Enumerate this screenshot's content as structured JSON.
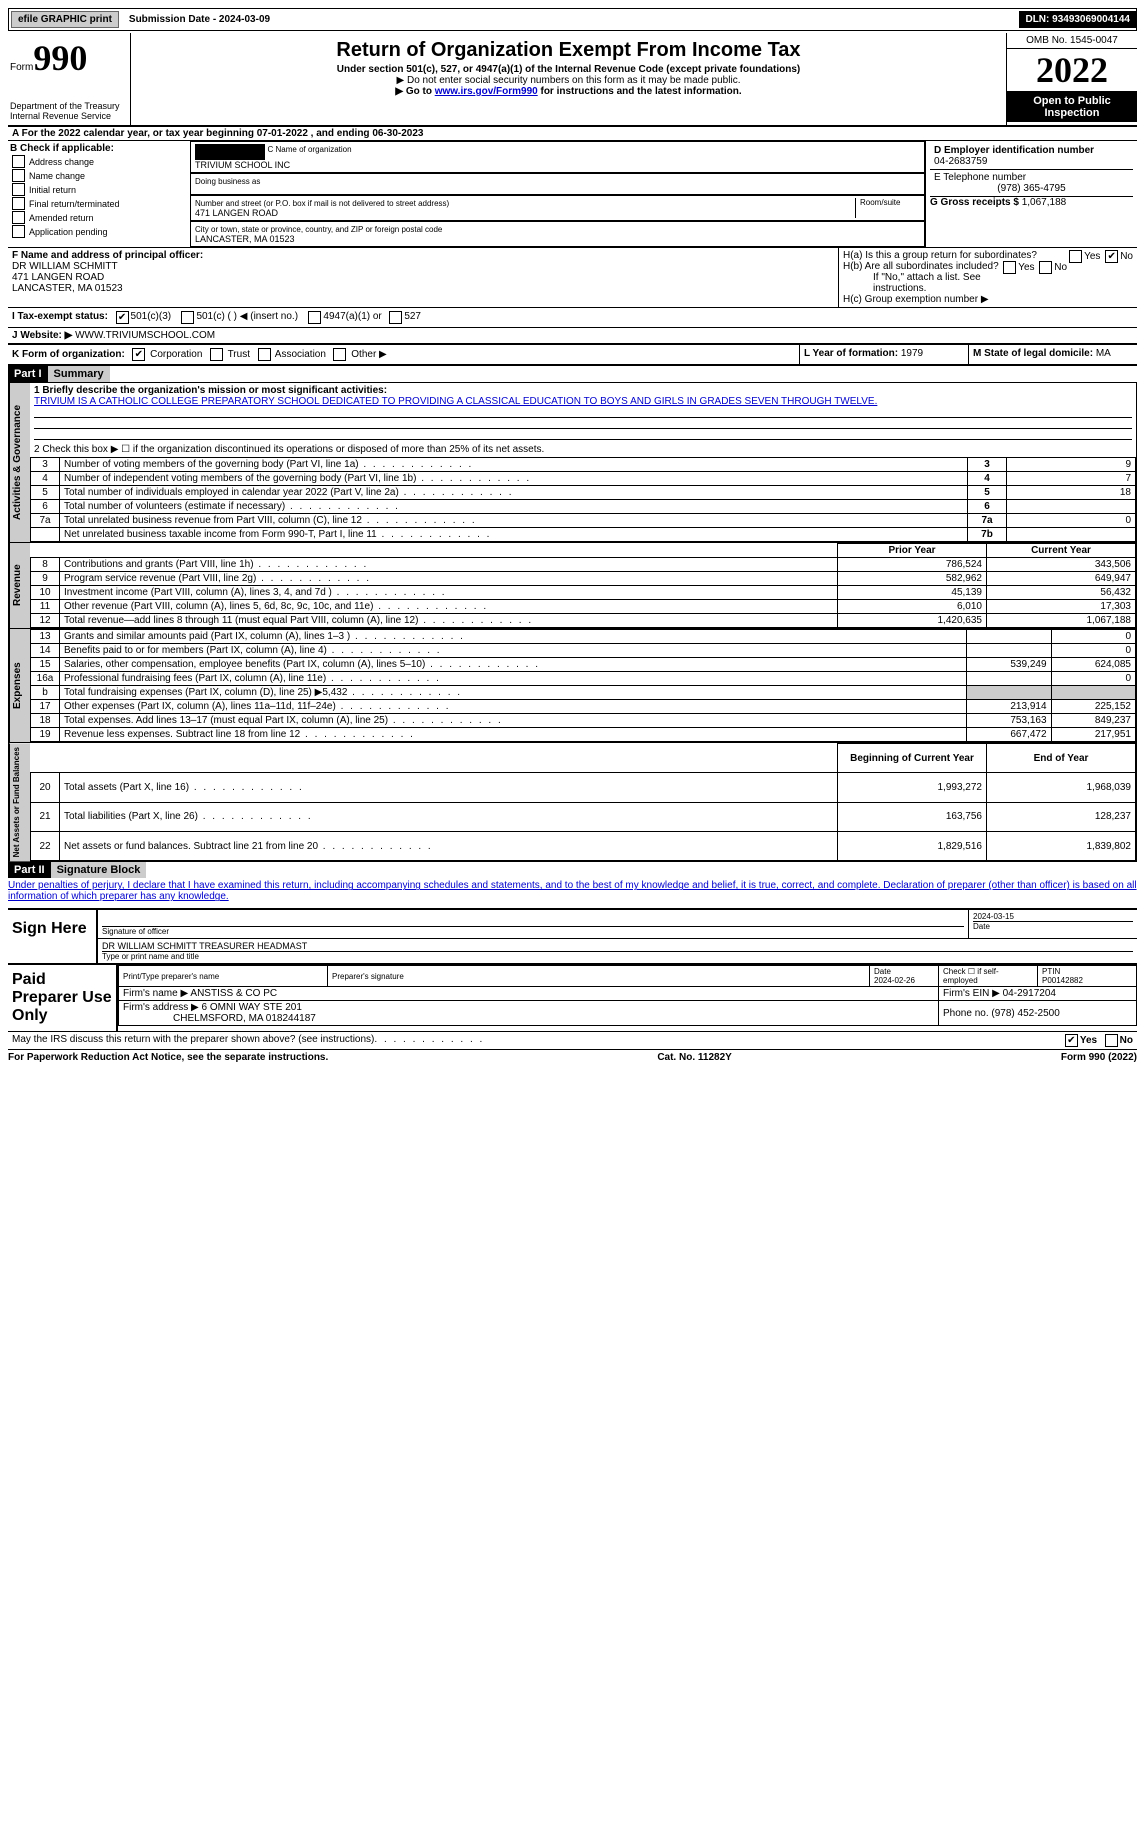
{
  "topbar": {
    "efile": "efile GRAPHIC print",
    "submission": "Submission Date - 2024-03-09",
    "dln": "DLN: 93493069004144"
  },
  "hdr": {
    "form_prefix": "Form",
    "form_num": "990",
    "title": "Return of Organization Exempt From Income Tax",
    "sub1": "Under section 501(c), 527, or 4947(a)(1) of the Internal Revenue Code (except private foundations)",
    "sub2": "▶ Do not enter social security numbers on this form as it may be made public.",
    "sub3_pre": "▶ Go to ",
    "sub3_link": "www.irs.gov/Form990",
    "sub3_post": " for instructions and the latest information.",
    "dept": "Department of the Treasury",
    "irs": "Internal Revenue Service",
    "omb": "OMB No. 1545-0047",
    "year": "2022",
    "inspect": "Open to Public Inspection"
  },
  "A": {
    "text": "A For the 2022 calendar year, or tax year beginning 07-01-2022   , and ending 06-30-2023"
  },
  "B": {
    "label": "B Check if applicable:",
    "opts": [
      "Address change",
      "Name change",
      "Initial return",
      "Final return/terminated",
      "Amended return",
      "Application pending"
    ]
  },
  "C": {
    "name_label": "C Name of organization",
    "name": "TRIVIUM SCHOOL INC",
    "dba_label": "Doing business as",
    "dba": "",
    "addr_label": "Number and street (or P.O. box if mail is not delivered to street address)",
    "room": "Room/suite",
    "addr": "471 LANGEN ROAD",
    "city_label": "City or town, state or province, country, and ZIP or foreign postal code",
    "city": "LANCASTER, MA  01523"
  },
  "D": {
    "label": "D Employer identification number",
    "val": "04-2683759"
  },
  "E": {
    "label": "E Telephone number",
    "val": "(978) 365-4795"
  },
  "G": {
    "label": "G Gross receipts $",
    "val": "1,067,188"
  },
  "F": {
    "label": "F  Name and address of principal officer:",
    "name": "DR WILLIAM SCHMITT",
    "addr": "471 LANGEN ROAD",
    "city": "LANCASTER, MA  01523"
  },
  "H": {
    "a": "H(a)  Is this a group return for subordinates?",
    "a_yes": "Yes",
    "a_no": "No",
    "b": "H(b)  Are all subordinates included?",
    "b_yes": "Yes",
    "b_no": "No",
    "b_note": "If \"No,\" attach a list. See instructions.",
    "c": "H(c)  Group exemption number ▶"
  },
  "I": {
    "label": "I   Tax-exempt status:",
    "c3": "501(c)(3)",
    "c": "501(c) (  ) ◀ (insert no.)",
    "a": "4947(a)(1) or",
    "five": "527"
  },
  "J": {
    "label": "J   Website: ▶",
    "val": "WWW.TRIVIUMSCHOOL.COM"
  },
  "K": {
    "label": "K Form of organization:",
    "corp": "Corporation",
    "trust": "Trust",
    "assoc": "Association",
    "other": "Other ▶"
  },
  "L": {
    "label": "L Year of formation:",
    "val": "1979"
  },
  "M": {
    "label": "M State of legal domicile:",
    "val": "MA"
  },
  "part1": {
    "num": "Part I",
    "title": "Summary"
  },
  "summary": {
    "q1": "1   Briefly describe the organization's mission or most significant activities:",
    "mission": "TRIVIUM IS A CATHOLIC COLLEGE PREPARATORY SCHOOL DEDICATED TO PROVIDING A CLASSICAL EDUCATION TO BOYS AND GIRLS IN GRADES SEVEN THROUGH TWELVE.",
    "q2": "2   Check this box ▶ ☐  if the organization discontinued its operations or disposed of more than 25% of its net assets.",
    "sideA": "Activities & Governance",
    "sideR": "Revenue",
    "sideE": "Expenses",
    "sideN": "Net Assets or Fund Balances",
    "hdrPrior": "Prior Year",
    "hdrCurr": "Current Year",
    "hdrBeg": "Beginning of Current Year",
    "hdrEnd": "End of Year",
    "rows_gov": [
      {
        "n": "3",
        "d": "Number of voting members of the governing body (Part VI, line 1a)",
        "box": "3",
        "v": "9"
      },
      {
        "n": "4",
        "d": "Number of independent voting members of the governing body (Part VI, line 1b)",
        "box": "4",
        "v": "7"
      },
      {
        "n": "5",
        "d": "Total number of individuals employed in calendar year 2022 (Part V, line 2a)",
        "box": "5",
        "v": "18"
      },
      {
        "n": "6",
        "d": "Total number of volunteers (estimate if necessary)",
        "box": "6",
        "v": ""
      },
      {
        "n": "7a",
        "d": "Total unrelated business revenue from Part VIII, column (C), line 12",
        "box": "7a",
        "v": "0"
      },
      {
        "n": "",
        "d": "Net unrelated business taxable income from Form 990-T, Part I, line 11",
        "box": "7b",
        "v": ""
      }
    ],
    "rows_rev": [
      {
        "n": "8",
        "d": "Contributions and grants (Part VIII, line 1h)",
        "p": "786,524",
        "c": "343,506"
      },
      {
        "n": "9",
        "d": "Program service revenue (Part VIII, line 2g)",
        "p": "582,962",
        "c": "649,947"
      },
      {
        "n": "10",
        "d": "Investment income (Part VIII, column (A), lines 3, 4, and 7d )",
        "p": "45,139",
        "c": "56,432"
      },
      {
        "n": "11",
        "d": "Other revenue (Part VIII, column (A), lines 5, 6d, 8c, 9c, 10c, and 11e)",
        "p": "6,010",
        "c": "17,303"
      },
      {
        "n": "12",
        "d": "Total revenue—add lines 8 through 11 (must equal Part VIII, column (A), line 12)",
        "p": "1,420,635",
        "c": "1,067,188"
      }
    ],
    "rows_exp": [
      {
        "n": "13",
        "d": "Grants and similar amounts paid (Part IX, column (A), lines 1–3 )",
        "p": "",
        "c": "0"
      },
      {
        "n": "14",
        "d": "Benefits paid to or for members (Part IX, column (A), line 4)",
        "p": "",
        "c": "0"
      },
      {
        "n": "15",
        "d": "Salaries, other compensation, employee benefits (Part IX, column (A), lines 5–10)",
        "p": "539,249",
        "c": "624,085"
      },
      {
        "n": "16a",
        "d": "Professional fundraising fees (Part IX, column (A), line 11e)",
        "p": "",
        "c": "0"
      },
      {
        "n": "b",
        "d": "Total fundraising expenses (Part IX, column (D), line 25) ▶5,432",
        "p": "shade",
        "c": "shade"
      },
      {
        "n": "17",
        "d": "Other expenses (Part IX, column (A), lines 11a–11d, 11f–24e)",
        "p": "213,914",
        "c": "225,152"
      },
      {
        "n": "18",
        "d": "Total expenses. Add lines 13–17 (must equal Part IX, column (A), line 25)",
        "p": "753,163",
        "c": "849,237"
      },
      {
        "n": "19",
        "d": "Revenue less expenses. Subtract line 18 from line 12",
        "p": "667,472",
        "c": "217,951"
      }
    ],
    "rows_net": [
      {
        "n": "20",
        "d": "Total assets (Part X, line 16)",
        "p": "1,993,272",
        "c": "1,968,039"
      },
      {
        "n": "21",
        "d": "Total liabilities (Part X, line 26)",
        "p": "163,756",
        "c": "128,237"
      },
      {
        "n": "22",
        "d": "Net assets or fund balances. Subtract line 21 from line 20",
        "p": "1,829,516",
        "c": "1,839,802"
      }
    ]
  },
  "part2": {
    "num": "Part II",
    "title": "Signature Block",
    "decl": "Under penalties of perjury, I declare that I have examined this return, including accompanying schedules and statements, and to the best of my knowledge and belief, it is true, correct, and complete. Declaration of preparer (other than officer) is based on all information of which preparer has any knowledge."
  },
  "sign": {
    "here": "Sign Here",
    "sig_label": "Signature of officer",
    "date": "2024-03-15",
    "date_label": "Date",
    "name": "DR WILLIAM SCHMITT TREASURER HEADMAST",
    "name_label": "Type or print name and title"
  },
  "paid": {
    "label": "Paid Preparer Use Only",
    "pt_name": "Print/Type preparer's name",
    "pt_sig": "Preparer's signature",
    "pt_date_lbl": "Date",
    "pt_date": "2024-02-26",
    "selfemp": "Check ☐ if self-employed",
    "ptin_lbl": "PTIN",
    "ptin": "P00142882",
    "firm_name_lbl": "Firm's name   ▶",
    "firm_name": "ANSTISS & CO PC",
    "firm_ein_lbl": "Firm's EIN ▶",
    "firm_ein": "04-2917204",
    "firm_addr_lbl": "Firm's address ▶",
    "firm_addr": "6 OMNI WAY STE 201",
    "firm_city": "CHELMSFORD, MA  018244187",
    "phone_lbl": "Phone no.",
    "phone": "(978) 452-2500"
  },
  "discuss": {
    "q": "May the IRS discuss this return with the preparer shown above? (see instructions)",
    "yes": "Yes",
    "no": "No"
  },
  "footer": {
    "pra": "For Paperwork Reduction Act Notice, see the separate instructions.",
    "cat": "Cat. No. 11282Y",
    "form": "Form 990 (2022)"
  }
}
